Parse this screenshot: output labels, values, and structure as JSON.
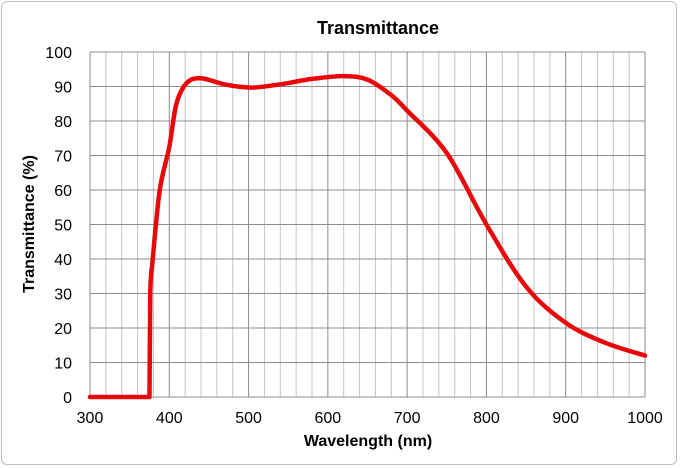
{
  "chart_data": {
    "type": "line",
    "title": "Transmittance",
    "xlabel": "Wavelength (nm)",
    "ylabel": "Transmittance (%)",
    "xlim": [
      300,
      1000
    ],
    "ylim": [
      0,
      100
    ],
    "x_ticks": [
      300,
      400,
      500,
      600,
      700,
      800,
      900,
      1000
    ],
    "y_ticks": [
      0,
      10,
      20,
      30,
      40,
      50,
      60,
      70,
      80,
      90,
      100
    ],
    "x_minor_step": 20,
    "grid": true,
    "legend": "none",
    "series": [
      {
        "color": "#e8080c",
        "x": [
          300,
          375,
          376,
          379,
          388,
          400,
          409,
          422,
          440,
          470,
          500,
          520,
          550,
          580,
          620,
          650,
          680,
          700,
          750,
          800,
          850,
          900,
          950,
          1000
        ],
        "y": [
          0,
          0,
          30,
          39.7,
          60,
          72.5,
          85,
          91,
          92.4,
          90.6,
          89.7,
          90,
          91,
          92.2,
          93,
          92,
          87.5,
          83,
          70.7,
          50,
          32,
          21.5,
          15.7,
          12
        ]
      }
    ]
  }
}
